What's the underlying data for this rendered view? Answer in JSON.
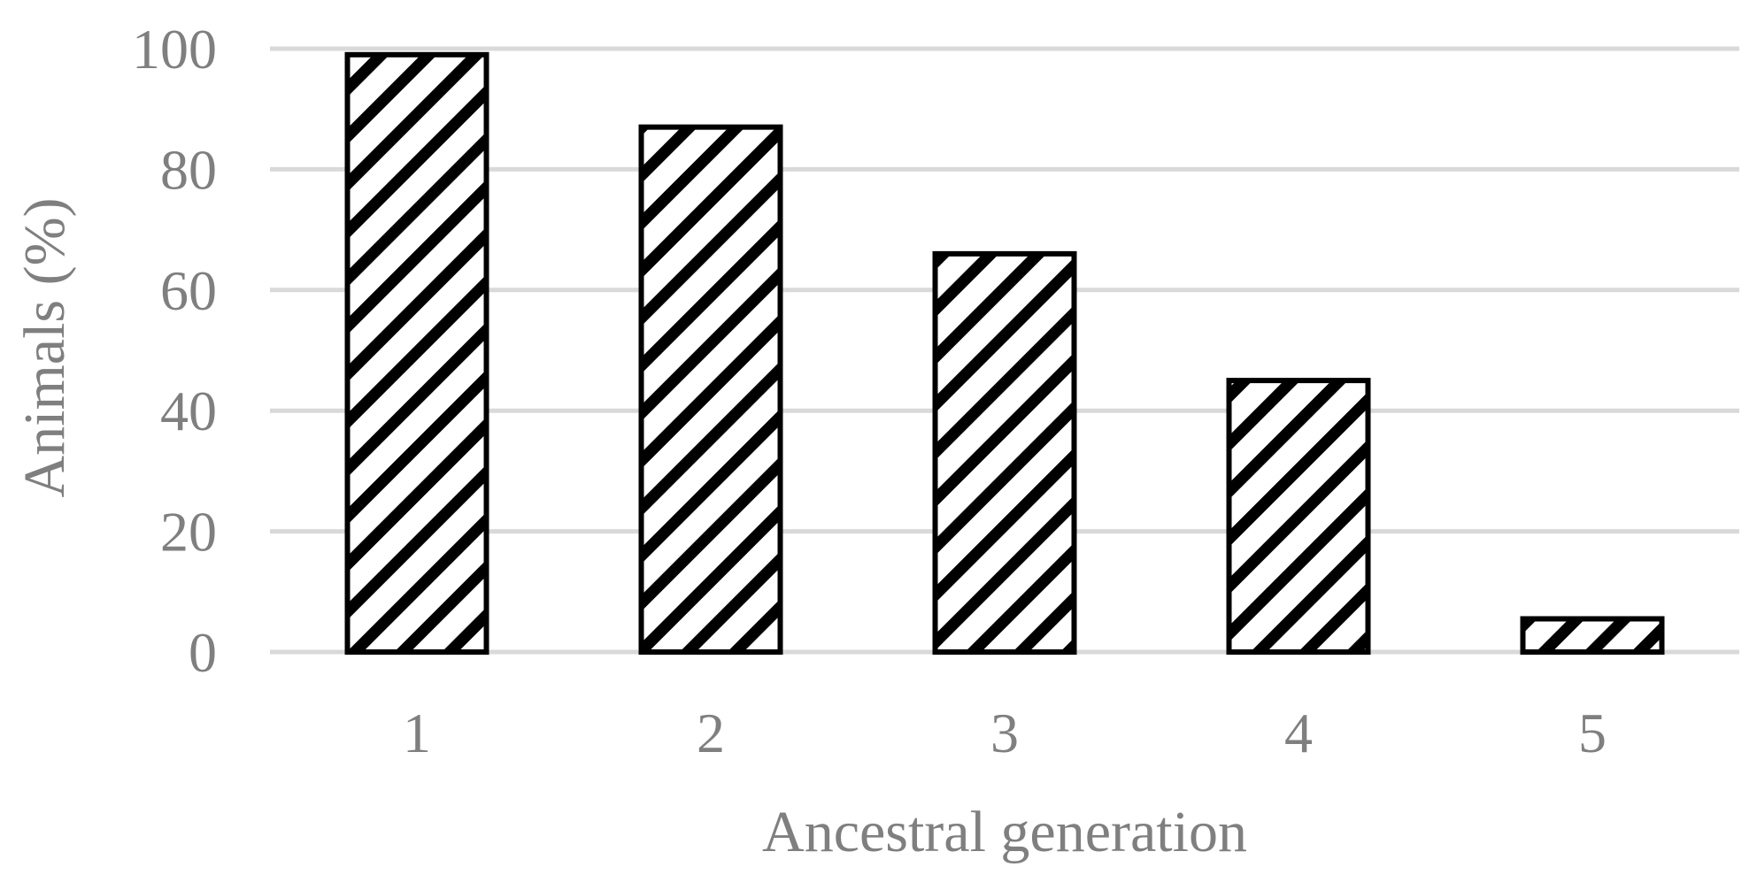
{
  "chart_data": {
    "type": "bar",
    "categories": [
      "1",
      "2",
      "3",
      "4",
      "5"
    ],
    "values": [
      99,
      87,
      66,
      45,
      5.5
    ],
    "xlabel": "Ancestral generation",
    "ylabel": "Animals (%)",
    "ylim": [
      0,
      100
    ],
    "yticks": [
      "0",
      "20",
      "40",
      "60",
      "80",
      "100"
    ],
    "grid": true,
    "bar_fill": "diagonal-hatch",
    "colors": {
      "bar_stroke": "#000000",
      "bar_fill": "#ffffff",
      "hatch": "#000000",
      "grid": "#d9d9d9",
      "text": "#7f7f7f"
    }
  }
}
